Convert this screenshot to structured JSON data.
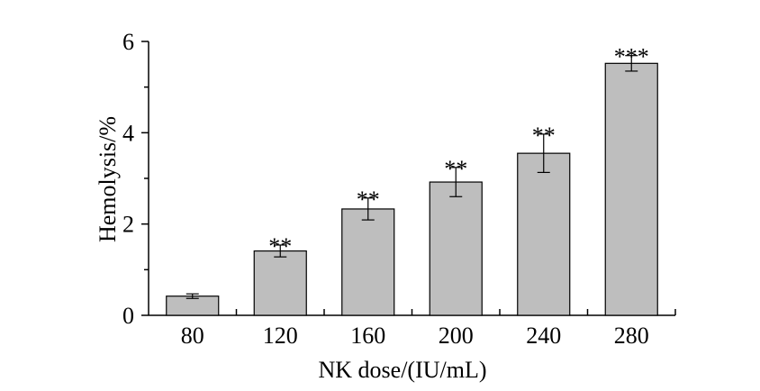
{
  "chart_data": {
    "type": "bar",
    "categories": [
      "80",
      "120",
      "160",
      "200",
      "240",
      "280"
    ],
    "values": [
      0.42,
      1.41,
      2.33,
      2.92,
      3.55,
      5.52
    ],
    "error": [
      0.05,
      0.13,
      0.24,
      0.32,
      0.42,
      0.17
    ],
    "significance": [
      "",
      "**",
      "**",
      "**",
      "**",
      "***"
    ],
    "xlabel": "NK dose/(IU/mL)",
    "ylabel": "Hemolysis/%",
    "ylim": [
      0,
      6
    ],
    "yticks": [
      "0",
      "2",
      "4",
      "6"
    ],
    "bar_color": "#bebebe",
    "grid": false
  }
}
